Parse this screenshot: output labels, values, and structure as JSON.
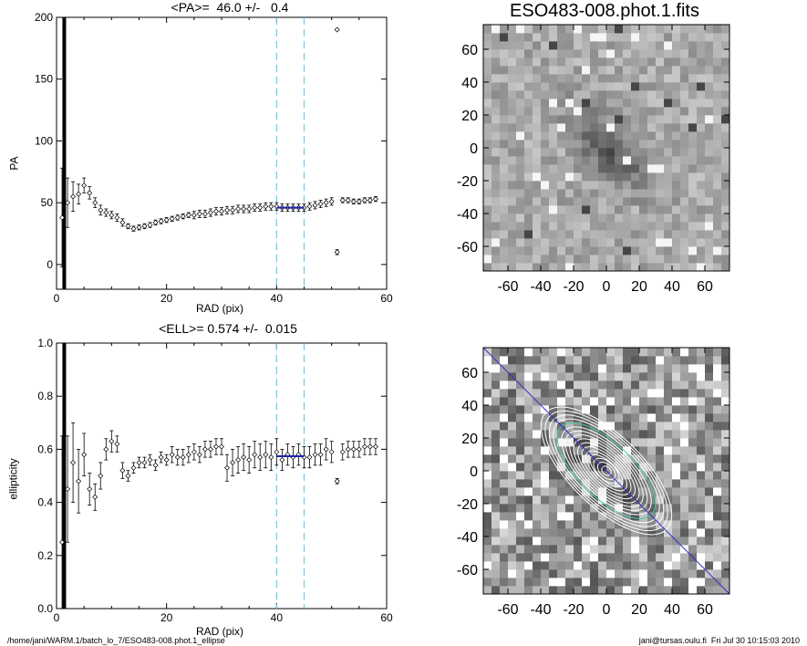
{
  "footer": {
    "left": "/home/jani/WARM.1/batch_lo_7/ESO483-008.phot.1_ellipse",
    "right": "jani@tursas.oulu.fi  Fri Jul 30 10:15:03 2010"
  },
  "colors": {
    "marker_line": "#66ccee",
    "fit_segment": "#2222aa",
    "diagonal": "#3333cc",
    "contour": "#ffffff",
    "contour_accent": "#40c8b0"
  },
  "chart_data": [
    {
      "type": "scatter",
      "title": "<PA>=  46.0 +/-   0.4",
      "xlabel": "RAD (pix)",
      "ylabel": "PA",
      "xlim": [
        0,
        60
      ],
      "ylim": [
        -20,
        200
      ],
      "xticks": [
        "0",
        "20",
        "40",
        "60"
      ],
      "yticks": [
        "0",
        "50",
        "100",
        "150",
        "200"
      ],
      "vlines": [
        40,
        45
      ],
      "fit_segment": {
        "x": [
          40,
          45
        ],
        "y": 46
      },
      "x": [
        1,
        2,
        3,
        4,
        5,
        6,
        7,
        8,
        9,
        10,
        11,
        12,
        13,
        14,
        15,
        16,
        17,
        18,
        19,
        20,
        21,
        22,
        23,
        24,
        25,
        26,
        27,
        28,
        29,
        30,
        31,
        32,
        33,
        34,
        35,
        36,
        37,
        38,
        39,
        40,
        41,
        42,
        43,
        44,
        45,
        46,
        47,
        48,
        49,
        50,
        51,
        52,
        53,
        54,
        55,
        56,
        57,
        58
      ],
      "y": [
        38,
        50,
        55,
        57,
        64,
        58,
        50,
        44,
        42,
        40,
        38,
        34,
        31,
        29,
        30,
        31,
        32,
        34,
        35,
        36,
        37,
        38,
        39,
        40,
        40,
        41,
        41,
        42,
        43,
        43,
        44,
        44,
        45,
        45,
        45,
        46,
        46,
        47,
        47,
        47,
        46,
        46,
        46,
        46,
        46,
        47,
        48,
        49,
        50,
        51,
        10,
        52,
        52,
        51,
        51,
        52,
        52,
        53
      ],
      "yerr": [
        40,
        20,
        12,
        8,
        6,
        5,
        4,
        4,
        3,
        3,
        3,
        3,
        2,
        2,
        2,
        2,
        2,
        2,
        2,
        2,
        2,
        2,
        2,
        2,
        3,
        3,
        3,
        3,
        3,
        3,
        3,
        3,
        3,
        3,
        3,
        3,
        3,
        3,
        3,
        3,
        3,
        3,
        3,
        3,
        3,
        3,
        3,
        3,
        3,
        3,
        2,
        2,
        2,
        2,
        2,
        2,
        2,
        2
      ],
      "outliers": [
        {
          "x": 51,
          "y": 190
        }
      ]
    },
    {
      "type": "scatter",
      "title": "<ELL>= 0.574 +/-  0.015",
      "xlabel": "RAD (pix)",
      "ylabel": "ellipticity",
      "xlim": [
        0,
        60
      ],
      "ylim": [
        0,
        1
      ],
      "xticks": [
        "0",
        "20",
        "40",
        "60"
      ],
      "yticks": [
        "0.0",
        "0.2",
        "0.4",
        "0.6",
        "0.8",
        "1.0"
      ],
      "vlines": [
        40,
        45
      ],
      "fit_segment": {
        "x": [
          40,
          45
        ],
        "y": 0.574
      },
      "x": [
        1,
        2,
        3,
        4,
        5,
        6,
        7,
        8,
        9,
        10,
        11,
        12,
        13,
        14,
        15,
        16,
        17,
        18,
        19,
        20,
        21,
        22,
        23,
        24,
        25,
        26,
        27,
        28,
        29,
        30,
        31,
        32,
        33,
        34,
        35,
        36,
        37,
        38,
        39,
        40,
        41,
        42,
        43,
        44,
        45,
        46,
        47,
        48,
        49,
        50,
        51,
        52,
        53,
        54,
        55,
        56,
        57,
        58
      ],
      "y": [
        0.25,
        0.45,
        0.55,
        0.48,
        0.58,
        0.45,
        0.42,
        0.5,
        0.6,
        0.63,
        0.62,
        0.52,
        0.5,
        0.53,
        0.55,
        0.55,
        0.56,
        0.54,
        0.57,
        0.56,
        0.58,
        0.57,
        0.57,
        0.58,
        0.59,
        0.58,
        0.6,
        0.6,
        0.61,
        0.61,
        0.53,
        0.55,
        0.56,
        0.57,
        0.56,
        0.58,
        0.57,
        0.58,
        0.57,
        0.59,
        0.56,
        0.58,
        0.57,
        0.58,
        0.57,
        0.57,
        0.58,
        0.58,
        0.6,
        0.59,
        0.48,
        0.59,
        0.6,
        0.6,
        0.6,
        0.61,
        0.61,
        0.61
      ],
      "yerr": [
        0.4,
        0.2,
        0.15,
        0.12,
        0.08,
        0.06,
        0.05,
        0.05,
        0.04,
        0.04,
        0.03,
        0.03,
        0.02,
        0.02,
        0.02,
        0.02,
        0.02,
        0.02,
        0.02,
        0.02,
        0.03,
        0.03,
        0.03,
        0.03,
        0.03,
        0.03,
        0.03,
        0.03,
        0.03,
        0.03,
        0.05,
        0.05,
        0.05,
        0.05,
        0.05,
        0.05,
        0.05,
        0.05,
        0.05,
        0.05,
        0.04,
        0.04,
        0.04,
        0.04,
        0.04,
        0.04,
        0.04,
        0.04,
        0.04,
        0.04,
        0.01,
        0.03,
        0.03,
        0.03,
        0.03,
        0.03,
        0.03,
        0.03
      ]
    },
    {
      "type": "heatmap",
      "title": "ESO483-008.phot.1.fits",
      "xlim": [
        -75,
        75
      ],
      "ylim": [
        -75,
        75
      ],
      "xticks": [
        "-60",
        "-40",
        "-20",
        "0",
        "20",
        "40",
        "60"
      ],
      "yticks": [
        "-60",
        "-40",
        "-20",
        "0",
        "20",
        "40",
        "60"
      ],
      "grid_size": 30,
      "center": [
        0,
        0
      ],
      "position_angle_deg": 46
    },
    {
      "type": "heatmap",
      "title": "",
      "xlim": [
        -75,
        75
      ],
      "ylim": [
        -75,
        75
      ],
      "xticks": [
        "-60",
        "-40",
        "-20",
        "0",
        "20",
        "40",
        "60"
      ],
      "yticks": [
        "-60",
        "-40",
        "-20",
        "0",
        "20",
        "40",
        "60"
      ],
      "grid_size": 30,
      "overlay": "ellipse contours",
      "ellipticity": 0.574,
      "position_angle_deg": 46
    }
  ]
}
